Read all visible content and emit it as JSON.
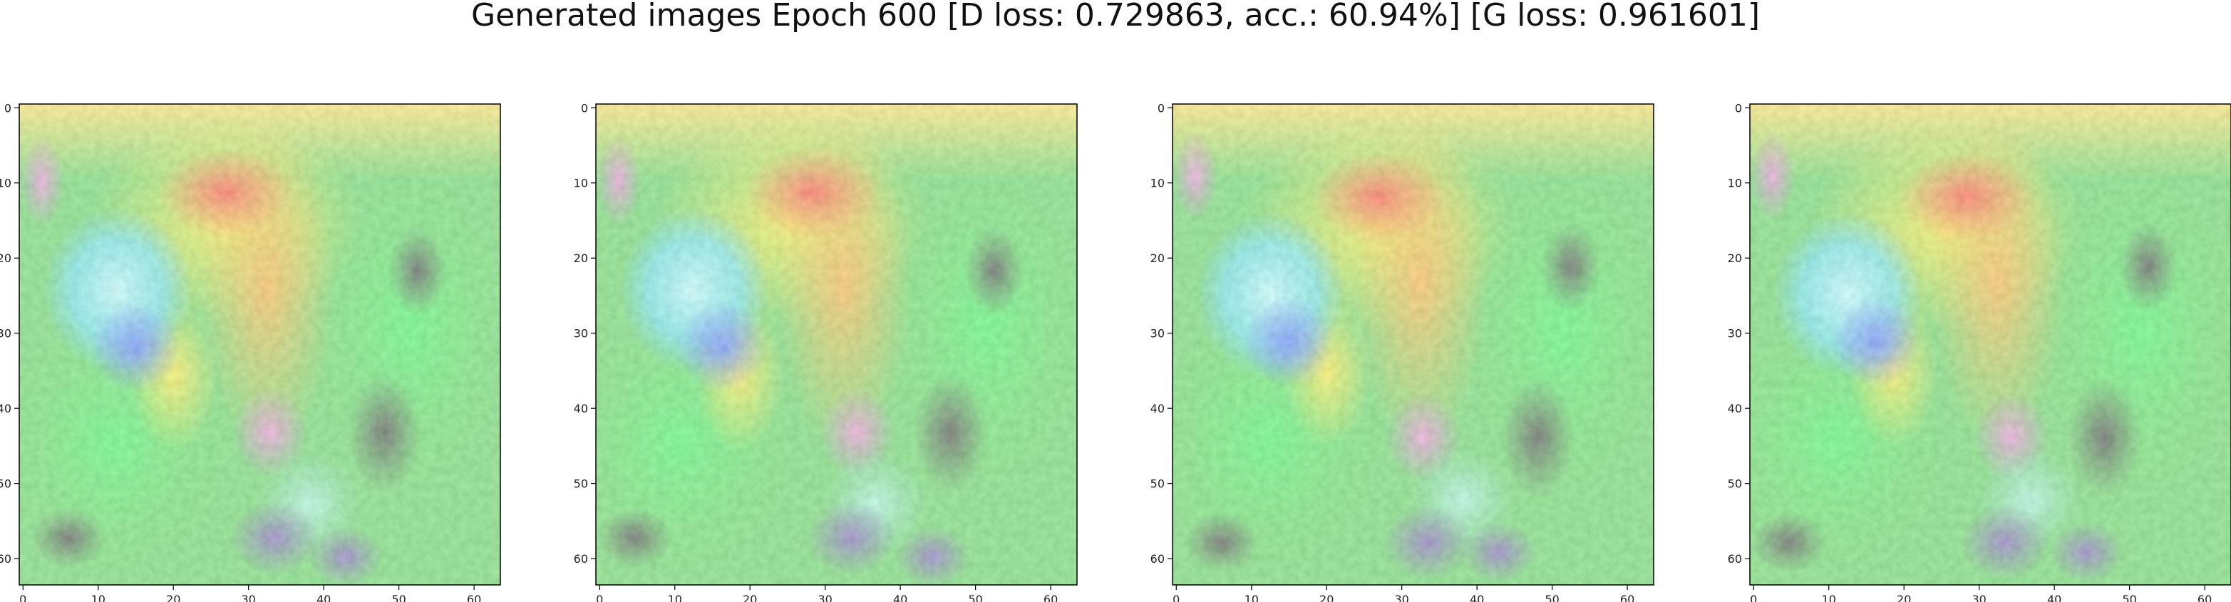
{
  "figure": {
    "title": "Generated images Epoch 600 [D loss: 0.729863, acc.: 60.94%] [G loss: 0.961601]"
  },
  "panels": [
    {
      "name": "panel-1",
      "tick_labels": [
        "0",
        "10",
        "20",
        "30",
        "40",
        "50",
        "60"
      ]
    },
    {
      "name": "panel-2",
      "tick_labels": [
        "0",
        "10",
        "20",
        "30",
        "40",
        "50",
        "60"
      ]
    },
    {
      "name": "panel-3",
      "tick_labels": [
        "0",
        "10",
        "20",
        "30",
        "40",
        "50",
        "60"
      ]
    },
    {
      "name": "panel-4",
      "tick_labels": [
        "0",
        "10",
        "20",
        "30",
        "40",
        "50",
        "60"
      ]
    }
  ],
  "axes": {
    "xlim": [
      0,
      64
    ],
    "ylim": [
      0,
      64
    ],
    "ticks": [
      0,
      10,
      20,
      30,
      40,
      50,
      60
    ]
  }
}
